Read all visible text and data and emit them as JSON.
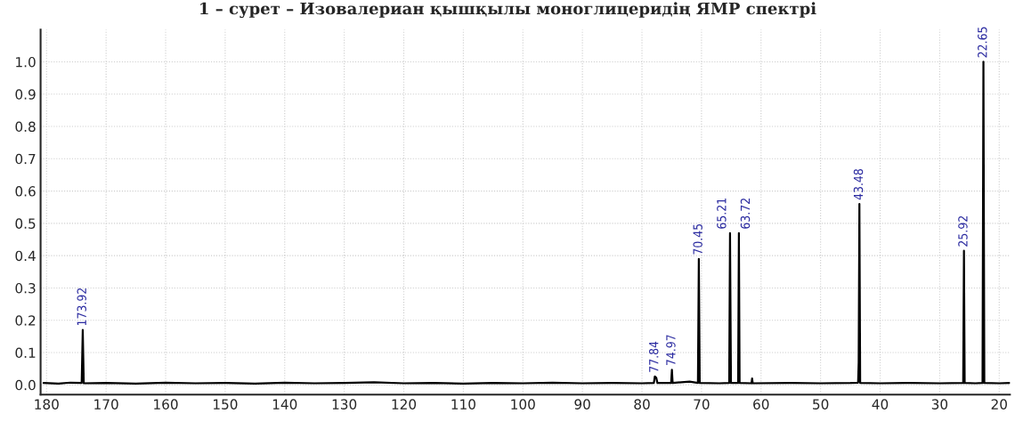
{
  "chart_data": {
    "type": "line",
    "title": "1 – сурет – Изовалериан қышқылы моноглицеридің ЯМР спектрі",
    "x": [
      180.5,
      178,
      176,
      174.1,
      173.92,
      173.75,
      170,
      165,
      160,
      155,
      150,
      145,
      140,
      135,
      130,
      125,
      120,
      115,
      110,
      105,
      100,
      95,
      90,
      85,
      80,
      78.0,
      77.84,
      77.6,
      77.4,
      75.1,
      74.97,
      74.85,
      72,
      70.6,
      70.45,
      70.3,
      67,
      65.35,
      65.21,
      65.05,
      63.85,
      63.72,
      63.6,
      61.6,
      61.5,
      61.4,
      55,
      50,
      45,
      43.7,
      43.6,
      43.48,
      43.35,
      40,
      35,
      30,
      26.05,
      25.92,
      25.8,
      24,
      22.8,
      22.65,
      22.5,
      20,
      18.2
    ],
    "series": [
      {
        "color": "#000000",
        "values": [
          0.006,
          0.004,
          0.007,
          0.006,
          0.17,
          0.005,
          0.006,
          0.004,
          0.007,
          0.005,
          0.006,
          0.004,
          0.007,
          0.005,
          0.006,
          0.008,
          0.005,
          0.006,
          0.004,
          0.006,
          0.005,
          0.007,
          0.005,
          0.006,
          0.005,
          0.006,
          0.026,
          0.022,
          0.006,
          0.006,
          0.047,
          0.006,
          0.01,
          0.006,
          0.39,
          0.006,
          0.005,
          0.006,
          0.47,
          0.006,
          0.006,
          0.47,
          0.006,
          0.005,
          0.02,
          0.005,
          0.006,
          0.005,
          0.006,
          0.007,
          0.07,
          0.56,
          0.006,
          0.005,
          0.006,
          0.005,
          0.006,
          0.415,
          0.006,
          0.005,
          0.006,
          1.0,
          0.006,
          0.005,
          0.006
        ]
      }
    ],
    "xlim": [
      181,
      18.2
    ],
    "xticks": [
      180,
      170,
      160,
      150,
      140,
      130,
      120,
      110,
      100,
      90,
      80,
      70,
      60,
      50,
      40,
      30,
      20
    ],
    "ylim": [
      -0.03,
      1.1
    ],
    "yticks": [
      {
        "value": 0,
        "label": "0.0"
      },
      {
        "value": 0.1,
        "label": "0.1"
      },
      {
        "value": 0.2,
        "label": "0.2"
      },
      {
        "value": 0.3,
        "label": "0.3"
      },
      {
        "value": 0.4,
        "label": "0.4"
      },
      {
        "value": 0.5,
        "label": "0.5"
      },
      {
        "value": 0.6,
        "label": "0.6"
      },
      {
        "value": 0.7,
        "label": "0.7"
      },
      {
        "value": 0.8,
        "label": "0.8"
      },
      {
        "value": 0.9,
        "label": "0.9"
      },
      {
        "value": 1.0,
        "label": "1.0"
      }
    ],
    "grid": true,
    "line_style": "solid",
    "marker": "none",
    "annotations": [
      {
        "text": "173.92",
        "x": 173.92,
        "y": 0.17
      },
      {
        "text": "77.84",
        "x": 77.84,
        "y": 0.026
      },
      {
        "text": "74.97",
        "x": 74.97,
        "y": 0.047
      },
      {
        "text": "70.45",
        "x": 70.45,
        "y": 0.39
      },
      {
        "text": "65.21",
        "x": 65.21,
        "y": 0.47
      },
      {
        "text": "63.72",
        "x": 63.72,
        "y": 0.47
      },
      {
        "text": "43.48",
        "x": 43.48,
        "y": 0.56
      },
      {
        "text": "25.92",
        "x": 25.92,
        "y": 0.415
      },
      {
        "text": "22.65",
        "x": 22.65,
        "y": 1.0
      }
    ]
  }
}
